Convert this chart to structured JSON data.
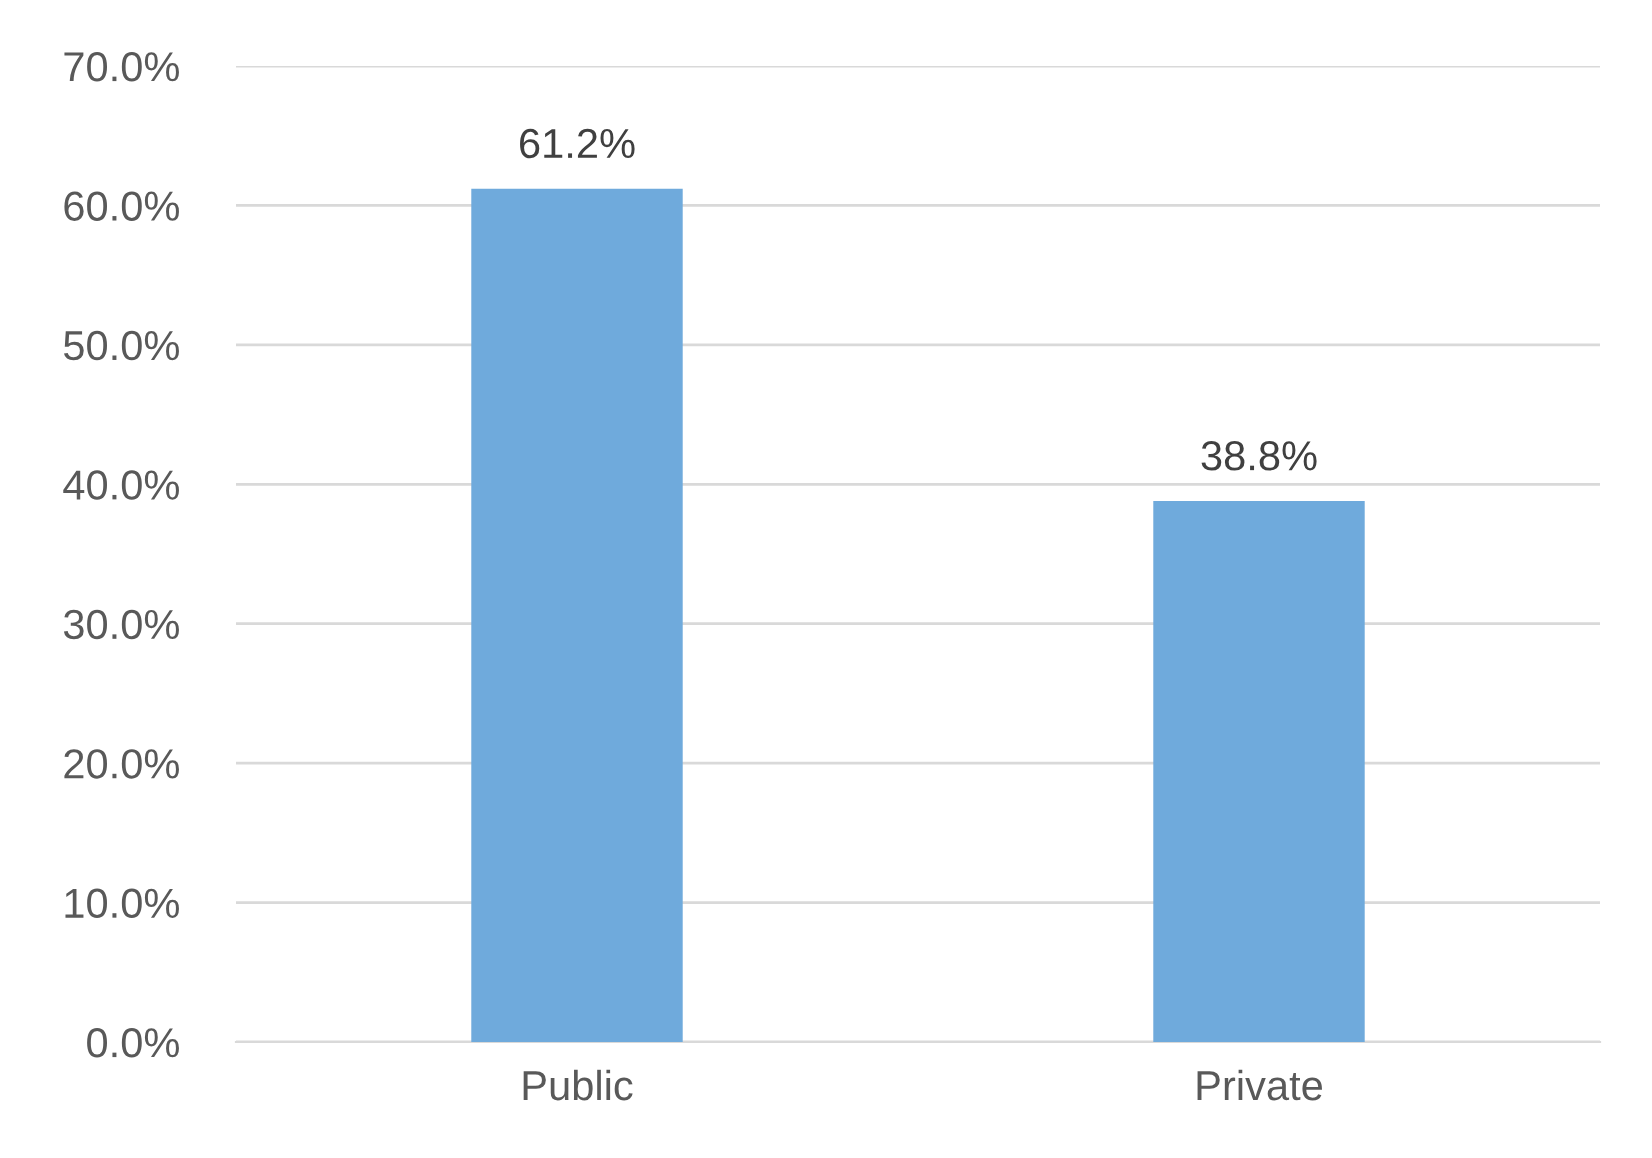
{
  "chart_data": {
    "type": "bar",
    "categories": [
      "Public",
      "Private"
    ],
    "values": [
      61.2,
      38.8
    ],
    "value_labels": [
      "61.2%",
      "38.8%"
    ],
    "color": "#6faadc",
    "ylim": [
      0,
      70
    ],
    "yticks": [
      {
        "value": 0,
        "label": "0.0%"
      },
      {
        "value": 10,
        "label": "10.0%"
      },
      {
        "value": 20,
        "label": "20.0%"
      },
      {
        "value": 30,
        "label": "30.0%"
      },
      {
        "value": 40,
        "label": "40.0%"
      },
      {
        "value": 50,
        "label": "50.0%"
      },
      {
        "value": 60,
        "label": "60.0%"
      },
      {
        "value": 70,
        "label": "70.0%"
      }
    ],
    "grid": "y"
  }
}
